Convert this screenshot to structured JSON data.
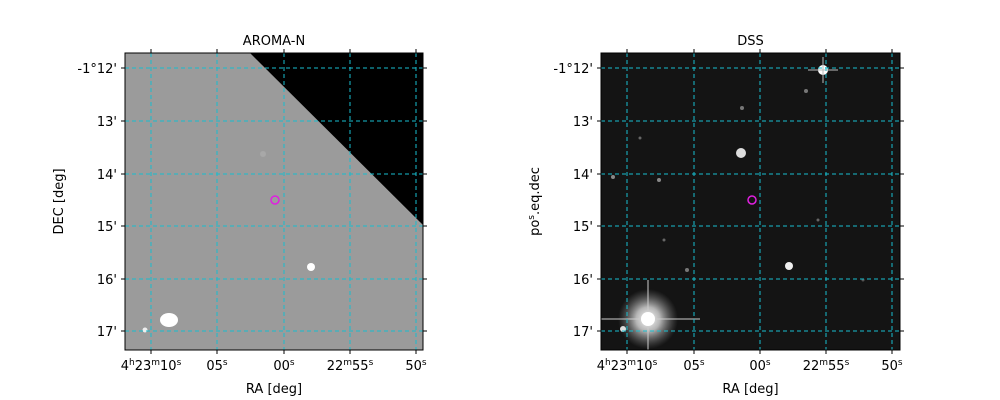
{
  "panels": [
    {
      "title": "AROMA-N",
      "xlabel": "RA [deg]",
      "ylabel": "DEC [deg]",
      "xticks": [
        "4h23m10s",
        "05s",
        "00s",
        "22m55s",
        "50s"
      ],
      "yticks": [
        "-1°12'",
        "13'",
        "14'",
        "15'",
        "16'",
        "17'"
      ]
    },
    {
      "title": "DSS",
      "xlabel": "RA [deg]",
      "ylabel": "pos.eq.dec",
      "xticks": [
        "4h23m10s",
        "05s",
        "00s",
        "22m55s",
        "50s"
      ],
      "yticks": [
        "-1°12'",
        "13'",
        "14'",
        "15'",
        "16'",
        "17'"
      ]
    }
  ]
}
